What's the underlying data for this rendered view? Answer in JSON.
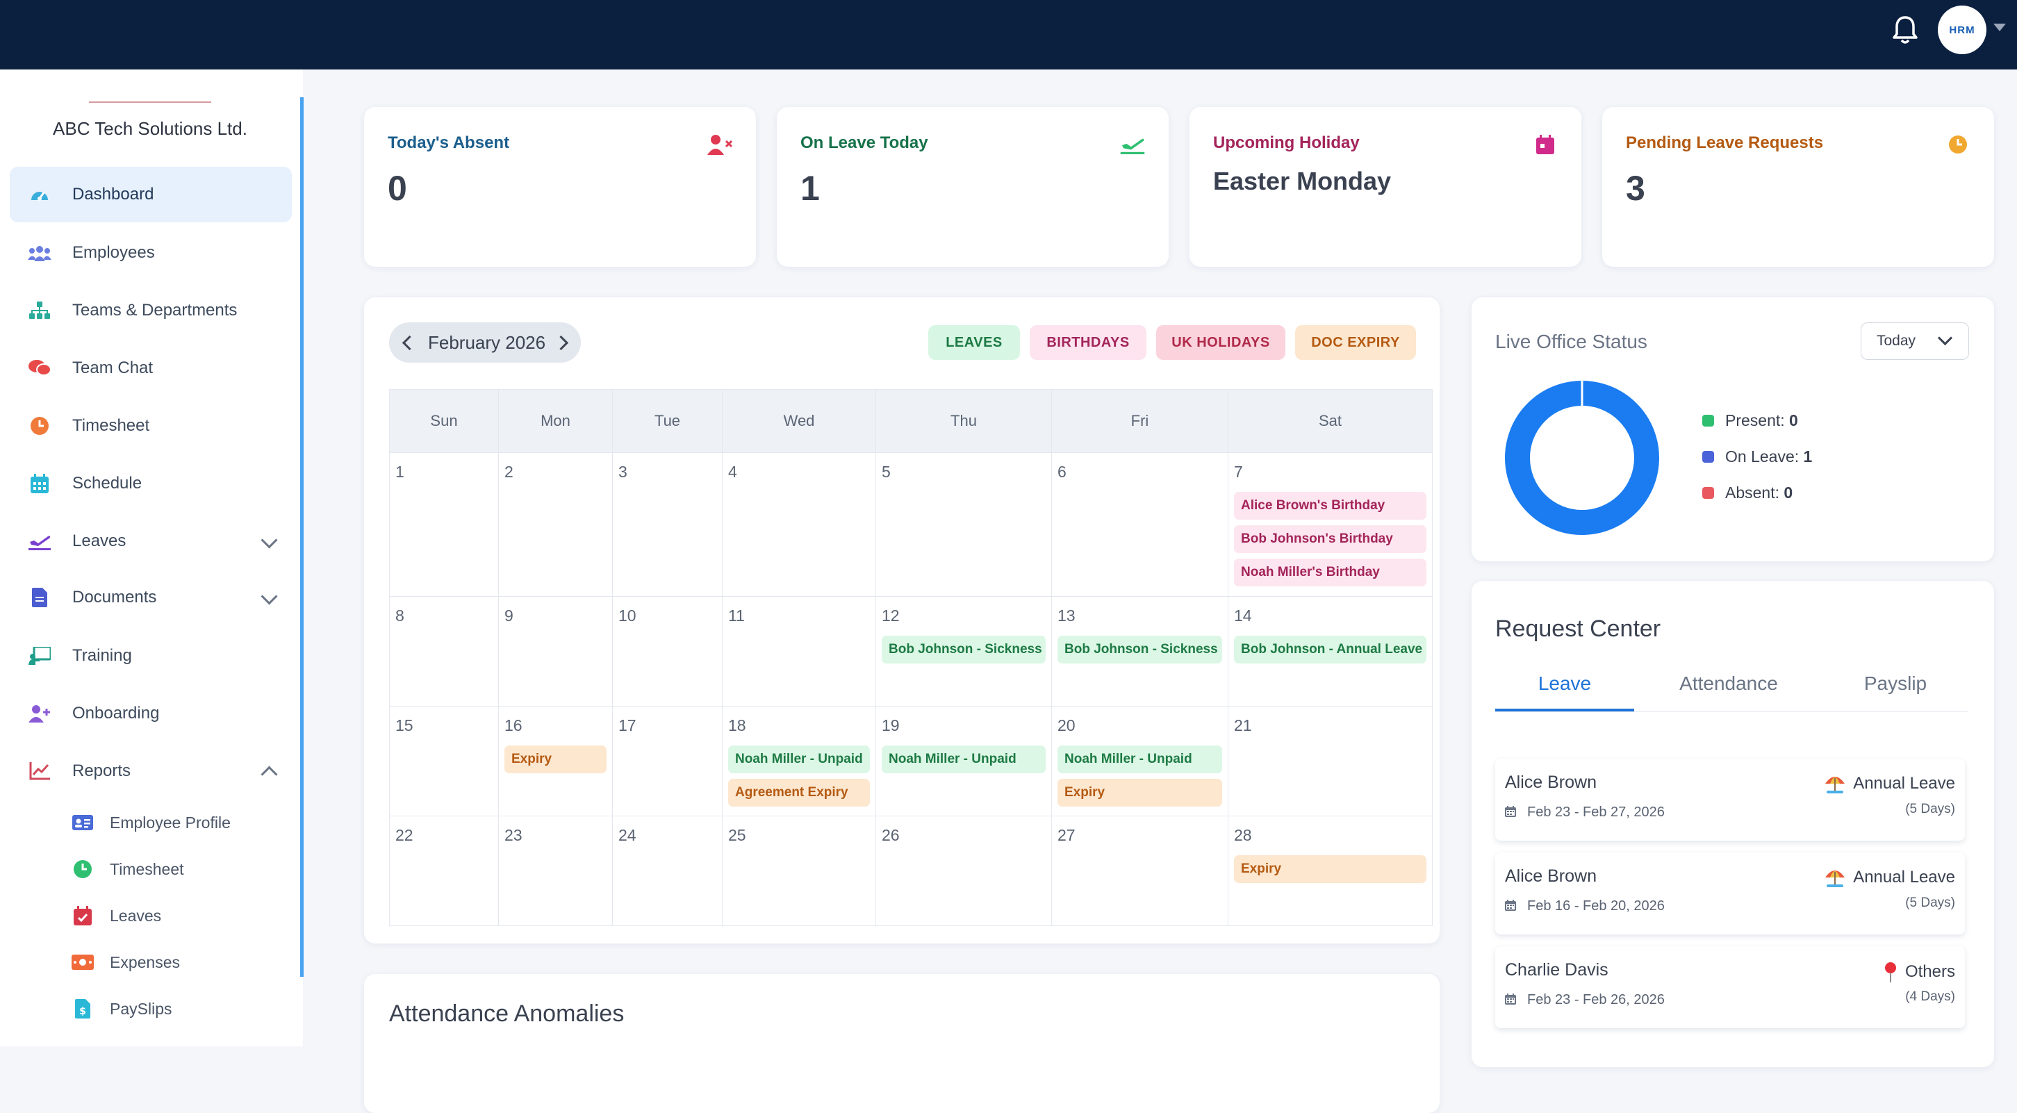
{
  "header": {
    "logo_text": "HRM"
  },
  "sidebar": {
    "company": "ABC Tech Solutions Ltd.",
    "items": [
      {
        "label": "Dashboard"
      },
      {
        "label": "Employees"
      },
      {
        "label": "Teams & Departments"
      },
      {
        "label": "Team Chat"
      },
      {
        "label": "Timesheet"
      },
      {
        "label": "Schedule"
      },
      {
        "label": "Leaves"
      },
      {
        "label": "Documents"
      },
      {
        "label": "Training"
      },
      {
        "label": "Onboarding"
      },
      {
        "label": "Reports"
      }
    ],
    "report_sub": [
      {
        "label": "Employee Profile"
      },
      {
        "label": "Timesheet"
      },
      {
        "label": "Leaves"
      },
      {
        "label": "Expenses"
      },
      {
        "label": "PaySlips"
      }
    ]
  },
  "stats": [
    {
      "title": "Today's Absent",
      "value": "0",
      "color": "#1b5e8c"
    },
    {
      "title": "On Leave Today",
      "value": "1",
      "color": "#17724a"
    },
    {
      "title": "Upcoming Holiday",
      "value": "Easter Monday",
      "color": "#a3245a"
    },
    {
      "title": "Pending Leave Requests",
      "value": "3",
      "color": "#b45a12"
    }
  ],
  "calendar": {
    "month": "February 2026",
    "filters": {
      "leaves": "LEAVES",
      "birthdays": "BIRTHDAYS",
      "uk_holidays": "UK HOLIDAYS",
      "doc_expiry": "DOC EXPIRY"
    },
    "weekdays": [
      "Sun",
      "Mon",
      "Tue",
      "Wed",
      "Thu",
      "Fri",
      "Sat"
    ],
    "weeks": [
      [
        {
          "day": "1",
          "events": []
        },
        {
          "day": "2",
          "events": []
        },
        {
          "day": "3",
          "events": []
        },
        {
          "day": "4",
          "events": []
        },
        {
          "day": "5",
          "events": []
        },
        {
          "day": "6",
          "events": []
        },
        {
          "day": "7",
          "events": [
            {
              "label": "Alice Brown's Birthday",
              "type": "birthday"
            },
            {
              "label": "Bob Johnson's Birthday",
              "type": "birthday"
            },
            {
              "label": "Noah Miller's Birthday",
              "type": "birthday"
            }
          ]
        }
      ],
      [
        {
          "day": "8",
          "events": []
        },
        {
          "day": "9",
          "events": []
        },
        {
          "day": "10",
          "events": []
        },
        {
          "day": "11",
          "events": []
        },
        {
          "day": "12",
          "events": [
            {
              "label": "Bob Johnson - Sickness",
              "type": "leave"
            }
          ]
        },
        {
          "day": "13",
          "events": [
            {
              "label": "Bob Johnson - Sickness",
              "type": "leave"
            }
          ]
        },
        {
          "day": "14",
          "events": [
            {
              "label": "Bob Johnson - Annual Leave",
              "type": "leave"
            }
          ]
        }
      ],
      [
        {
          "day": "15",
          "events": []
        },
        {
          "day": "16",
          "events": [
            {
              "label": "Expiry",
              "type": "expiry"
            }
          ]
        },
        {
          "day": "17",
          "events": []
        },
        {
          "day": "18",
          "events": [
            {
              "label": "Noah Miller - Unpaid",
              "type": "leave"
            },
            {
              "label": "Agreement Expiry",
              "type": "expiry"
            }
          ]
        },
        {
          "day": "19",
          "events": [
            {
              "label": "Noah Miller - Unpaid",
              "type": "leave"
            }
          ]
        },
        {
          "day": "20",
          "events": [
            {
              "label": "Noah Miller - Unpaid",
              "type": "leave"
            },
            {
              "label": "Expiry",
              "type": "expiry"
            }
          ]
        },
        {
          "day": "21",
          "events": []
        }
      ],
      [
        {
          "day": "22",
          "events": []
        },
        {
          "day": "23",
          "events": []
        },
        {
          "day": "24",
          "events": []
        },
        {
          "day": "25",
          "events": []
        },
        {
          "day": "26",
          "events": []
        },
        {
          "day": "27",
          "events": []
        },
        {
          "day": "28",
          "events": [
            {
              "label": "Expiry",
              "type": "expiry"
            }
          ]
        }
      ]
    ]
  },
  "office_status": {
    "title": "Live Office Status",
    "range": "Today",
    "legend": [
      {
        "label": "Present: ",
        "value": "0",
        "color": "#2fbf71"
      },
      {
        "label": "On Leave: ",
        "value": "1",
        "color": "#4a63d8"
      },
      {
        "label": "Absent: ",
        "value": "0",
        "color": "#e8585e"
      }
    ],
    "donut_color": "#1a7cf0"
  },
  "request_center": {
    "title": "Request Center",
    "tabs": [
      "Leave",
      "Attendance",
      "Payslip"
    ],
    "requests": [
      {
        "name": "Alice Brown",
        "dates": "Feb 23 - Feb 27, 2026",
        "type": "Annual Leave",
        "days": "(5 Days)",
        "icon": "beach-umbrella-icon"
      },
      {
        "name": "Alice Brown",
        "dates": "Feb 16 - Feb 20, 2026",
        "type": "Annual Leave",
        "days": "(5 Days)",
        "icon": "beach-umbrella-icon"
      },
      {
        "name": "Charlie Davis",
        "dates": "Feb 23 - Feb 26, 2026",
        "type": "Others",
        "days": "(4 Days)",
        "icon": "pin-icon"
      }
    ]
  },
  "anomalies": {
    "title": "Attendance Anomalies"
  }
}
